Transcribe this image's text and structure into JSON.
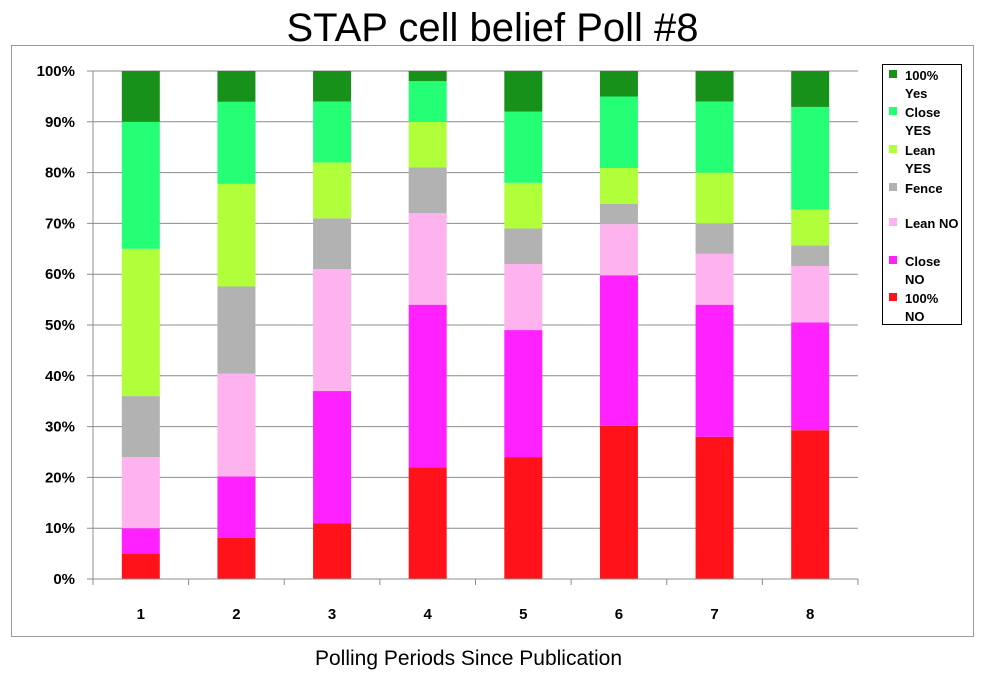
{
  "chart_data": {
    "type": "bar",
    "stacked": true,
    "normalized": true,
    "title": "STAP cell belief Poll #8",
    "xlabel": "Polling Periods Since Publication",
    "ylabel": "",
    "categories": [
      "1",
      "2",
      "3",
      "4",
      "5",
      "6",
      "7",
      "8"
    ],
    "ylim": [
      0,
      100
    ],
    "y_ticks": [
      "0%",
      "10%",
      "20%",
      "30%",
      "40%",
      "50%",
      "60%",
      "70%",
      "80%",
      "90%",
      "100%"
    ],
    "grid": true,
    "legend_position": "right",
    "series": [
      {
        "name": "100% NO",
        "color": "#ff1219",
        "values": [
          5,
          8,
          11,
          22,
          24,
          30,
          28,
          29
        ]
      },
      {
        "name": "Close NO",
        "color": "#ff21ff",
        "values": [
          5,
          12,
          26,
          32,
          25,
          29.5,
          26,
          21
        ]
      },
      {
        "name": "Lean NO",
        "color": "#ffb3ee",
        "values": [
          14,
          20,
          24,
          18,
          13,
          10,
          10,
          11
        ]
      },
      {
        "name": "Fence",
        "color": "#b2b2b2",
        "values": [
          12,
          17,
          10,
          9,
          7,
          4,
          6,
          4
        ]
      },
      {
        "name": "Lean YES",
        "color": "#b1ff3a",
        "values": [
          29,
          20,
          11,
          9,
          9,
          7,
          10,
          7
        ]
      },
      {
        "name": "Close YES",
        "color": "#24ff76",
        "values": [
          25,
          16,
          12,
          8,
          14,
          14,
          14,
          20
        ]
      },
      {
        "name": "100% Yes",
        "color": "#17911a",
        "values": [
          10,
          6,
          6,
          2,
          8,
          5,
          6,
          7
        ]
      }
    ],
    "legend_order": [
      "100% Yes",
      "Close YES",
      "Lean YES",
      "Fence",
      "Lean NO",
      "Close NO",
      "100% NO"
    ]
  }
}
